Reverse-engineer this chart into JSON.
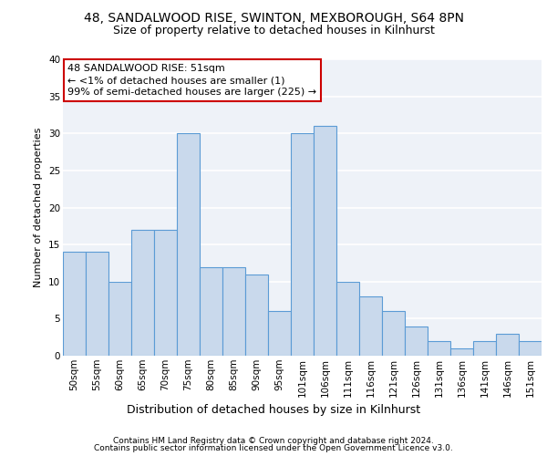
{
  "title1": "48, SANDALWOOD RISE, SWINTON, MEXBOROUGH, S64 8PN",
  "title2": "Size of property relative to detached houses in Kilnhurst",
  "xlabel": "Distribution of detached houses by size in Kilnhurst",
  "ylabel": "Number of detached properties",
  "categories": [
    "50sqm",
    "55sqm",
    "60sqm",
    "65sqm",
    "70sqm",
    "75sqm",
    "80sqm",
    "85sqm",
    "90sqm",
    "95sqm",
    "101sqm",
    "106sqm",
    "111sqm",
    "116sqm",
    "121sqm",
    "126sqm",
    "131sqm",
    "136sqm",
    "141sqm",
    "146sqm",
    "151sqm"
  ],
  "values": [
    14,
    14,
    10,
    17,
    17,
    30,
    12,
    12,
    11,
    6,
    30,
    31,
    10,
    8,
    6,
    4,
    2,
    1,
    2,
    3,
    2
  ],
  "bar_color": "#c9d9ec",
  "bar_edge_color": "#5b9bd5",
  "annotation_text": "48 SANDALWOOD RISE: 51sqm\n← <1% of detached houses are smaller (1)\n99% of semi-detached houses are larger (225) →",
  "annotation_box_color": "#ffffff",
  "annotation_box_edge": "#cc0000",
  "footnote1": "Contains HM Land Registry data © Crown copyright and database right 2024.",
  "footnote2": "Contains public sector information licensed under the Open Government Licence v3.0.",
  "ylim": [
    0,
    40
  ],
  "yticks": [
    0,
    5,
    10,
    15,
    20,
    25,
    30,
    35,
    40
  ],
  "background_color": "#eef2f8",
  "grid_color": "#ffffff",
  "title1_fontsize": 10,
  "title2_fontsize": 9,
  "xlabel_fontsize": 9,
  "ylabel_fontsize": 8,
  "tick_fontsize": 7.5,
  "annotation_fontsize": 8,
  "footnote_fontsize": 6.5
}
